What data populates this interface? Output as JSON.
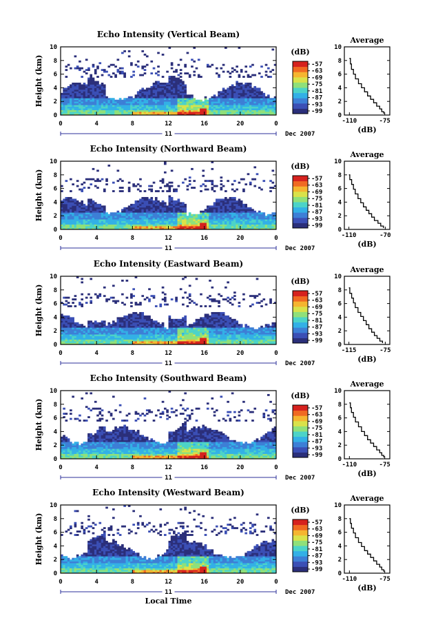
{
  "chart_data": [
    {
      "type": "heatmap",
      "title": "Echo Intensity (Vertical Beam)",
      "ylabel": "Height (km)",
      "xticks": [
        "0",
        "4",
        "8",
        "12",
        "16",
        "20",
        "0"
      ],
      "yticks": [
        "0",
        "2",
        "4",
        "6",
        "8",
        "10"
      ],
      "xlim": [
        0,
        24
      ],
      "ylim": [
        0,
        10
      ],
      "day_label": "11",
      "date_label": "Dec 2007",
      "colorbar": {
        "unit": "(dB)",
        "ticks": [
          "-57",
          "-63",
          "-69",
          "-75",
          "-81",
          "-87",
          "-93",
          "-99"
        ]
      },
      "profile": {
        "title": "Average",
        "xlabel": "(dB)",
        "xticks": [
          "-110",
          "-75"
        ],
        "xlim": [
          -115,
          -70
        ],
        "x": [
          -110,
          -109,
          -108,
          -106,
          -104,
          -101,
          -98,
          -95,
          -92,
          -89,
          -86,
          -83,
          -80,
          -78,
          -76
        ],
        "y": [
          8.3,
          7.5,
          6.7,
          6.0,
          5.3,
          4.6,
          4.0,
          3.4,
          2.8,
          2.3,
          1.8,
          1.3,
          0.9,
          0.5,
          0.2
        ]
      }
    },
    {
      "type": "heatmap",
      "title": "Echo Intensity (Northward Beam)",
      "ylabel": "Height (km)",
      "xticks": [
        "0",
        "4",
        "8",
        "12",
        "16",
        "20",
        "0"
      ],
      "yticks": [
        "0",
        "2",
        "4",
        "6",
        "8",
        "10"
      ],
      "xlim": [
        0,
        24
      ],
      "ylim": [
        0,
        10
      ],
      "day_label": "11",
      "date_label": "Dec 2007",
      "colorbar": {
        "unit": "(dB)",
        "ticks": [
          "-57",
          "-63",
          "-69",
          "-75",
          "-81",
          "-87",
          "-93",
          "-99"
        ]
      },
      "profile": {
        "title": "Average",
        "xlabel": "(dB)",
        "xticks": [
          "-110",
          "-70"
        ],
        "xlim": [
          -115,
          -65
        ],
        "x": [
          -110,
          -109,
          -107,
          -105,
          -103,
          -100,
          -97,
          -94,
          -91,
          -88,
          -85,
          -82,
          -78,
          -75,
          -72
        ],
        "y": [
          8.0,
          7.3,
          6.6,
          5.9,
          5.2,
          4.5,
          3.9,
          3.3,
          2.8,
          2.3,
          1.8,
          1.3,
          0.9,
          0.5,
          0.2
        ]
      }
    },
    {
      "type": "heatmap",
      "title": "Echo Intensity (Eastward Beam)",
      "ylabel": "Height (km)",
      "xticks": [
        "0",
        "4",
        "8",
        "12",
        "16",
        "20",
        "0"
      ],
      "yticks": [
        "0",
        "2",
        "4",
        "6",
        "8",
        "10"
      ],
      "xlim": [
        0,
        24
      ],
      "ylim": [
        0,
        10
      ],
      "day_label": "11",
      "date_label": "Dec 2007",
      "colorbar": {
        "unit": "(dB)",
        "ticks": [
          "-57",
          "-63",
          "-69",
          "-75",
          "-81",
          "-87",
          "-93",
          "-99"
        ]
      },
      "profile": {
        "title": "Average",
        "xlabel": "(dB)",
        "xticks": [
          "-115",
          "-75"
        ],
        "xlim": [
          -120,
          -70
        ],
        "x": [
          -115,
          -114,
          -112,
          -110,
          -108,
          -105,
          -102,
          -99,
          -96,
          -93,
          -90,
          -87,
          -84,
          -81,
          -78
        ],
        "y": [
          8.3,
          7.5,
          6.8,
          6.1,
          5.4,
          4.7,
          4.1,
          3.5,
          2.9,
          2.3,
          1.8,
          1.3,
          0.9,
          0.5,
          0.2
        ]
      }
    },
    {
      "type": "heatmap",
      "title": "Echo Intensity (Southward Beam)",
      "ylabel": "Height (km)",
      "xticks": [
        "0",
        "4",
        "8",
        "12",
        "16",
        "20",
        "0"
      ],
      "yticks": [
        "0",
        "2",
        "4",
        "6",
        "8",
        "10"
      ],
      "xlim": [
        0,
        24
      ],
      "ylim": [
        0,
        10
      ],
      "day_label": "11",
      "date_label": "Dec 2007",
      "colorbar": {
        "unit": "(dB)",
        "ticks": [
          "-57",
          "-63",
          "-69",
          "-75",
          "-81",
          "-87",
          "-93",
          "-99"
        ]
      },
      "profile": {
        "title": "Average",
        "xlabel": "(dB)",
        "xticks": [
          "-110",
          "-75"
        ],
        "xlim": [
          -115,
          -70
        ],
        "x": [
          -110,
          -109,
          -108,
          -106,
          -104,
          -101,
          -98,
          -95,
          -92,
          -89,
          -86,
          -83,
          -80,
          -78,
          -76
        ],
        "y": [
          8.2,
          7.5,
          6.8,
          6.1,
          5.4,
          4.7,
          4.0,
          3.4,
          2.8,
          2.3,
          1.8,
          1.3,
          0.9,
          0.5,
          0.2
        ]
      }
    },
    {
      "type": "heatmap",
      "title": "Echo Intensity (Westward Beam)",
      "ylabel": "Height (km)",
      "xlabel": "Local Time",
      "xticks": [
        "0",
        "4",
        "8",
        "12",
        "16",
        "20",
        "0"
      ],
      "yticks": [
        "0",
        "2",
        "4",
        "6",
        "8",
        "10"
      ],
      "xlim": [
        0,
        24
      ],
      "ylim": [
        0,
        10
      ],
      "day_label": "11",
      "date_label": "Dec 2007",
      "colorbar": {
        "unit": "(dB)",
        "ticks": [
          "-57",
          "-63",
          "-69",
          "-75",
          "-81",
          "-87",
          "-93",
          "-99"
        ]
      },
      "profile": {
        "title": "Average",
        "xlabel": "(dB)",
        "xticks": [
          "-110",
          "-75"
        ],
        "xlim": [
          -115,
          -70
        ],
        "x": [
          -110,
          -109,
          -108,
          -106,
          -104,
          -101,
          -98,
          -95,
          -92,
          -89,
          -86,
          -83,
          -80,
          -78,
          -76
        ],
        "y": [
          8.0,
          7.3,
          6.6,
          5.9,
          5.2,
          4.5,
          3.9,
          3.3,
          2.8,
          2.3,
          1.8,
          1.3,
          0.9,
          0.5,
          0.2
        ]
      }
    }
  ],
  "colors": {
    "scale": [
      "#2b2f7a",
      "#3b4fb5",
      "#3d7fd6",
      "#33b0e6",
      "#4cd3c8",
      "#8fe07a",
      "#d9e24a",
      "#f5b530",
      "#f06a22",
      "#d6221e"
    ]
  }
}
